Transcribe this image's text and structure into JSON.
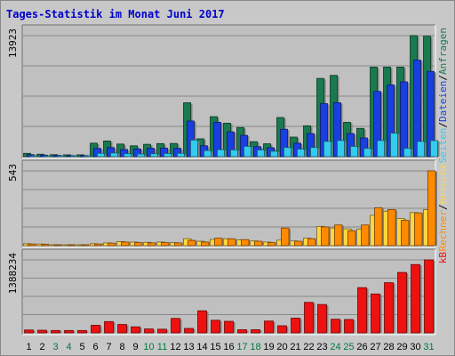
{
  "chart_data": {
    "type": "bar",
    "title": "Tages-Statistik im Monat Juni 2017",
    "days": [
      "1",
      "2",
      "3",
      "4",
      "5",
      "6",
      "7",
      "8",
      "9",
      "10",
      "11",
      "12",
      "13",
      "14",
      "15",
      "16",
      "17",
      "18",
      "19",
      "20",
      "21",
      "22",
      "23",
      "24",
      "25",
      "26",
      "27",
      "28",
      "29",
      "30",
      "31"
    ],
    "weekend_days": [
      "3",
      "4",
      "10",
      "11",
      "17",
      "18",
      "24",
      "25",
      "31"
    ],
    "colors": {
      "title": "#0000cc",
      "background": "#c0c0c0",
      "panel_background": "#c8c8c8",
      "gridline": "#888888",
      "anfragen": "#1a7a4f",
      "dateien": "#1a3fe0",
      "seiten": "#33ccee",
      "besuche": "#ffd640",
      "rechner": "#ff8a00",
      "kb": "#ee1111",
      "weekday_label": "#000000",
      "weekend_label": "#007a3d"
    },
    "panels": [
      {
        "id": "requests",
        "ymax_label": "13923",
        "ymax": 13923,
        "legend": [
          {
            "label": "Seiten",
            "color": "#33ccee"
          },
          {
            "label": "/",
            "color": "#000000"
          },
          {
            "label": "Dateien",
            "color": "#1a3fe0"
          },
          {
            "label": "/",
            "color": "#000000"
          },
          {
            "label": "Anfragen",
            "color": "#1a7a4f"
          }
        ],
        "series": [
          {
            "name": "Anfragen",
            "color": "#1a7a4f",
            "values": [
              380,
              280,
              230,
              210,
              210,
              1550,
              1800,
              1450,
              1250,
              1420,
              1500,
              1520,
              6200,
              2050,
              4600,
              3850,
              3350,
              1720,
              1480,
              4500,
              2250,
              3550,
              9000,
              9350,
              3950,
              3250,
              10300,
              10300,
              10300,
              13923,
              13850
            ]
          },
          {
            "name": "Dateien",
            "color": "#1a3fe0",
            "values": [
              230,
              180,
              150,
              130,
              130,
              950,
              1050,
              820,
              880,
              970,
              980,
              960,
              4100,
              1250,
              3950,
              2850,
              2450,
              1150,
              1030,
              3150,
              1550,
              2650,
              6100,
              6200,
              2650,
              2150,
              7500,
              8250,
              8600,
              11100,
              9800
            ]
          },
          {
            "name": "Seiten",
            "color": "#33ccee",
            "values": [
              90,
              70,
              60,
              55,
              55,
              380,
              420,
              340,
              300,
              340,
              360,
              380,
              1900,
              700,
              800,
              780,
              1180,
              760,
              620,
              1050,
              860,
              1050,
              1750,
              1850,
              1180,
              950,
              1850,
              2700,
              950,
              1750,
              1850
            ]
          }
        ]
      },
      {
        "id": "visits",
        "ymax_label": "543",
        "ymax": 543,
        "legend": [
          {
            "label": "Rechner",
            "color": "#ff8a00"
          },
          {
            "label": "/",
            "color": "#000000"
          },
          {
            "label": "Besuche",
            "color": "#ffd640"
          }
        ],
        "series": [
          {
            "name": "Besuche",
            "color": "#ffd640",
            "values": [
              14,
              12,
              6,
              6,
              6,
              14,
              20,
              30,
              26,
              24,
              26,
              22,
              50,
              32,
              45,
              50,
              42,
              34,
              26,
              40,
              34,
              54,
              140,
              128,
              122,
              120,
              220,
              250,
              198,
              240,
              262
            ]
          },
          {
            "name": "Rechner",
            "color": "#ff8a00",
            "values": [
              12,
              10,
              6,
              5,
              5,
              12,
              18,
              26,
              22,
              20,
              22,
              20,
              38,
              26,
              54,
              50,
              44,
              32,
              22,
              128,
              32,
              50,
              136,
              150,
              108,
              150,
              275,
              262,
              184,
              238,
              543
            ]
          }
        ]
      },
      {
        "id": "traffic",
        "ymax_label": "1388234",
        "ymax": 1388234,
        "legend": [
          {
            "label": "kB",
            "color": "#ee1111"
          }
        ],
        "series": [
          {
            "name": "kB",
            "color": "#ee1111",
            "values": [
              55000,
              50000,
              45000,
              45000,
              45000,
              145000,
              215000,
              160000,
              115000,
              75000,
              70000,
              275000,
              85000,
              420000,
              240000,
              220000,
              60000,
              60000,
              225000,
              135000,
              280000,
              580000,
              540000,
              260000,
              255000,
              860000,
              740000,
              955000,
              1150000,
              1300000,
              1388234
            ]
          }
        ]
      }
    ]
  }
}
